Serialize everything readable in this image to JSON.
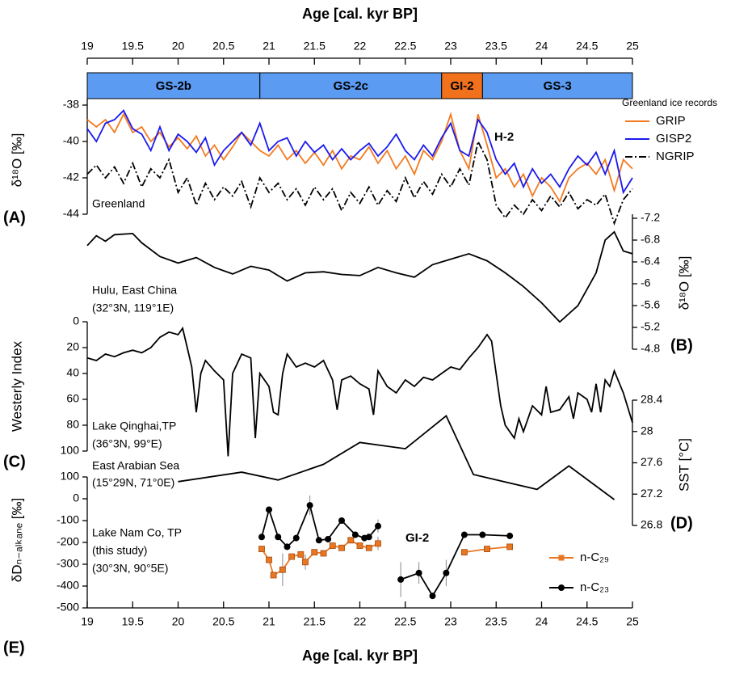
{
  "chart_data": [
    {
      "type": "line",
      "xlabel": "Age [cal. kyr BP]",
      "xlim": [
        19,
        25
      ],
      "xticks": [
        19,
        19.5,
        20,
        20.5,
        21,
        21.5,
        22,
        22.5,
        23,
        23.5,
        24,
        24.5,
        25
      ],
      "stages": [
        {
          "label": "GS-2b",
          "start": 19,
          "end": 20.9,
          "color": "#5b9bf2"
        },
        {
          "label": "GS-2c",
          "start": 20.9,
          "end": 22.9,
          "color": "#5b9bf2"
        },
        {
          "label": "GI-2",
          "start": 22.9,
          "end": 23.35,
          "color": "#f2711c"
        },
        {
          "label": "GS-3",
          "start": 23.35,
          "end": 25,
          "color": "#5b9bf2"
        }
      ],
      "ylabel": "δ¹⁸O [‰]",
      "ylim": [
        -44,
        -38
      ],
      "yticks": [
        -38,
        -40,
        -42,
        -44
      ],
      "panel_label": "(A)",
      "annotations": [
        "Greenland",
        "H-2"
      ],
      "legend_title": "Greenland ice records",
      "x": [
        19,
        19.1,
        19.2,
        19.3,
        19.4,
        19.5,
        19.6,
        19.7,
        19.8,
        19.9,
        20,
        20.1,
        20.2,
        20.3,
        20.4,
        20.5,
        20.6,
        20.7,
        20.8,
        20.9,
        21,
        21.1,
        21.2,
        21.3,
        21.4,
        21.5,
        21.6,
        21.7,
        21.8,
        21.9,
        22,
        22.1,
        22.2,
        22.3,
        22.4,
        22.5,
        22.6,
        22.7,
        22.8,
        22.9,
        23,
        23.1,
        23.2,
        23.3,
        23.4,
        23.5,
        23.6,
        23.7,
        23.8,
        23.9,
        24,
        24.1,
        24.2,
        24.3,
        24.4,
        24.5,
        24.6,
        24.7,
        24.8,
        24.9,
        25
      ],
      "series": [
        {
          "name": "GRIP",
          "color": "#f47a20",
          "values": [
            -38.8,
            -39.2,
            -38.8,
            -39.5,
            -38.5,
            -39.5,
            -39.2,
            -40,
            -39.5,
            -40.3,
            -39.8,
            -40.4,
            -39.7,
            -40.8,
            -40.2,
            -41,
            -40.3,
            -39.5,
            -40,
            -40.5,
            -40.8,
            -40.2,
            -41,
            -40.5,
            -41.2,
            -40.6,
            -41.3,
            -40.5,
            -41.5,
            -40.8,
            -41,
            -40.3,
            -41.2,
            -40.5,
            -41.5,
            -40.8,
            -41.8,
            -40.5,
            -41,
            -40,
            -38.5,
            -40.5,
            -41.5,
            -38.5,
            -40.2,
            -42,
            -41.5,
            -42.5,
            -41.8,
            -43,
            -42,
            -42.5,
            -43.3,
            -42,
            -41.5,
            -41.2,
            -41.8,
            -41,
            -42.7,
            -41,
            -41.5
          ]
        },
        {
          "name": "GISP2",
          "color": "#1a1aef",
          "values": [
            -39.3,
            -40,
            -39,
            -38.8,
            -38.3,
            -39.3,
            -39.6,
            -40.5,
            -39.2,
            -40.5,
            -39.6,
            -40,
            -40.6,
            -39.8,
            -41.3,
            -40.5,
            -40,
            -39.5,
            -40.2,
            -39,
            -40.5,
            -40,
            -39.8,
            -40.8,
            -40,
            -40.6,
            -40.2,
            -41,
            -40.4,
            -41,
            -40.5,
            -40.1,
            -40.8,
            -40.3,
            -39.6,
            -40.5,
            -41,
            -40.2,
            -40.8,
            -39.8,
            -39,
            -40.5,
            -40.8,
            -38.8,
            -39.5,
            -41,
            -41.8,
            -41.2,
            -42.5,
            -41.5,
            -42.3,
            -41.8,
            -42.5,
            -41.5,
            -40.8,
            -41.3,
            -40.6,
            -41.8,
            -40.5,
            -42.8,
            -42
          ]
        },
        {
          "name": "NGRIP",
          "color": "#000000",
          "linestyle": "dashdot",
          "values": [
            -41.8,
            -41.3,
            -42,
            -41.4,
            -42.3,
            -41.2,
            -42.5,
            -41.5,
            -42,
            -41,
            -42.8,
            -42,
            -43.5,
            -42.3,
            -43.2,
            -42.5,
            -43,
            -42.2,
            -43.6,
            -42,
            -42.8,
            -42.3,
            -43.2,
            -42.6,
            -43.5,
            -42.5,
            -43.2,
            -42.6,
            -43.8,
            -42.8,
            -43.4,
            -42.5,
            -43.5,
            -42.7,
            -43.3,
            -42,
            -43.1,
            -42.2,
            -42.9,
            -41.8,
            -42.5,
            -41.5,
            -42.4,
            -40,
            -41,
            -43.5,
            -44.2,
            -43.5,
            -44,
            -43.2,
            -43.8,
            -43,
            -43.6,
            -42.8,
            -43.7,
            -43.2,
            -43.5,
            -42.9,
            -44.5,
            -43.2,
            -42.6
          ]
        }
      ]
    },
    {
      "type": "line",
      "ylabel": "δ¹⁸O [‰]",
      "ylim": [
        -4.8,
        -7.2
      ],
      "yticks": [
        -7.2,
        -6.8,
        -6.4,
        -6,
        -5.6,
        -5.2,
        -4.8
      ],
      "panel_label": "(B)",
      "annotations": [
        "Hulu, East China",
        "(32°3N, 119°1E)"
      ],
      "series": [
        {
          "color": "#000000",
          "x": [
            19,
            19.1,
            19.2,
            19.3,
            19.5,
            19.6,
            19.8,
            20,
            20.2,
            20.4,
            20.6,
            20.8,
            21,
            21.2,
            21.4,
            21.6,
            21.8,
            22,
            22.2,
            22.4,
            22.6,
            22.8,
            23,
            23.2,
            23.4,
            23.6,
            23.8,
            24,
            24.2,
            24.4,
            24.6,
            24.7,
            24.8,
            24.9,
            25
          ],
          "values": [
            -6.7,
            -6.88,
            -6.78,
            -6.9,
            -6.92,
            -6.75,
            -6.5,
            -6.38,
            -6.48,
            -6.3,
            -6.18,
            -6.32,
            -6.25,
            -6.05,
            -6.2,
            -6.22,
            -6.17,
            -6.15,
            -6.3,
            -6.2,
            -6.12,
            -6.35,
            -6.45,
            -6.55,
            -6.42,
            -6.2,
            -5.95,
            -5.65,
            -5.3,
            -5.6,
            -6.2,
            -6.8,
            -6.95,
            -6.6,
            -6.55
          ]
        }
      ]
    },
    {
      "type": "line",
      "ylabel": "Westerly Index",
      "ylim": [
        100,
        0
      ],
      "yticks": [
        0,
        20,
        40,
        60,
        80,
        100
      ],
      "panel_label": "(C)",
      "annotations": [
        "Lake Qinghai,TP",
        "(36°3N, 99°E)"
      ],
      "series": [
        {
          "color": "#000000",
          "x": [
            19,
            19.1,
            19.2,
            19.3,
            19.4,
            19.5,
            19.6,
            19.7,
            19.8,
            19.9,
            20,
            20.05,
            20.1,
            20.15,
            20.2,
            20.25,
            20.3,
            20.4,
            20.5,
            20.55,
            20.6,
            20.7,
            20.8,
            20.85,
            20.9,
            21,
            21.05,
            21.1,
            21.15,
            21.2,
            21.3,
            21.4,
            21.5,
            21.6,
            21.7,
            21.75,
            21.8,
            21.9,
            22,
            22.1,
            22.15,
            22.2,
            22.3,
            22.4,
            22.5,
            22.6,
            22.7,
            22.8,
            22.9,
            23,
            23.1,
            23.2,
            23.3,
            23.4,
            23.45,
            23.55,
            23.6,
            23.7,
            23.75,
            23.8,
            23.9,
            24,
            24.05,
            24.1,
            24.2,
            24.3,
            24.35,
            24.4,
            24.5,
            24.55,
            24.6,
            24.65,
            24.7,
            24.75,
            24.8,
            24.9,
            25
          ],
          "values": [
            28,
            30,
            25,
            27,
            24,
            22,
            24,
            20,
            12,
            8,
            10,
            5,
            20,
            35,
            70,
            40,
            30,
            38,
            45,
            104,
            40,
            25,
            28,
            90,
            40,
            50,
            70,
            72,
            40,
            25,
            35,
            32,
            35,
            30,
            45,
            68,
            45,
            42,
            48,
            52,
            72,
            38,
            50,
            55,
            45,
            50,
            43,
            45,
            40,
            35,
            37,
            28,
            20,
            10,
            15,
            65,
            80,
            90,
            75,
            85,
            65,
            72,
            50,
            70,
            68,
            58,
            75,
            55,
            60,
            70,
            48,
            70,
            45,
            50,
            38,
            55,
            78
          ]
        }
      ]
    },
    {
      "type": "line",
      "ylabel": "SST [°C]",
      "ylim": [
        26.8,
        28.4
      ],
      "yticks": [
        28.4,
        28,
        27.6,
        27.2,
        26.8
      ],
      "panel_label": "(D)",
      "annotations": [
        "East Arabian Sea",
        "(15°29N, 71°0E)"
      ],
      "series": [
        {
          "color": "#000000",
          "x": [
            20,
            20.7,
            21.1,
            21.6,
            22,
            22.5,
            22.95,
            23.25,
            23.95,
            24.3,
            24.8
          ],
          "values": [
            27.36,
            27.48,
            27.38,
            27.58,
            27.86,
            27.78,
            28.2,
            27.45,
            27.26,
            27.56,
            27.13
          ]
        }
      ]
    },
    {
      "type": "line",
      "xlabel": "Age [cal. kyr BP]",
      "xlim": [
        19,
        25
      ],
      "xticks": [
        19,
        19.5,
        20,
        20.5,
        21,
        21.5,
        22,
        22.5,
        23,
        23.5,
        24,
        24.5,
        25
      ],
      "ylabel": "δDₙ₋ₐₗₖₐₙₑ [‰]",
      "ylim": [
        -500,
        100
      ],
      "yticks": [
        100,
        0,
        -100,
        -200,
        -300,
        -400,
        -500
      ],
      "panel_label": "(E)",
      "annotations": [
        "Lake Nam Co, TP",
        "(this study)",
        "(30°3N, 90°5E)",
        "GI-2"
      ],
      "series": [
        {
          "name": "n-C₂₉",
          "color": "#e87722",
          "marker": "square",
          "x": [
            20.92,
            21,
            21.05,
            21.15,
            21.25,
            21.35,
            21.4,
            21.5,
            21.6,
            21.7,
            21.8,
            21.9,
            22,
            22.1,
            22.2,
            22.7,
            23.15,
            23.4,
            23.65
          ],
          "values": [
            -230,
            -280,
            -350,
            -325,
            -265,
            -255,
            -290,
            -245,
            -250,
            -215,
            -225,
            -190,
            -215,
            -225,
            -205,
            null,
            -245,
            -230,
            -220
          ],
          "errors": [
            null,
            null,
            null,
            75,
            null,
            null,
            35,
            null,
            null,
            null,
            null,
            null,
            null,
            null,
            30,
            null,
            null,
            null,
            null
          ]
        },
        {
          "name": "n-C₂₃",
          "color": "#000000",
          "marker": "circle",
          "x": [
            20.92,
            21,
            21.1,
            21.2,
            21.3,
            21.45,
            21.55,
            21.65,
            21.8,
            21.95,
            22.05,
            22.1,
            22.2,
            22.35,
            22.45,
            22.65,
            22.8,
            22.95,
            23.15,
            23.35,
            23.65
          ],
          "values": [
            -175,
            -50,
            -175,
            -220,
            -180,
            -30,
            -190,
            -185,
            -100,
            -165,
            -180,
            -175,
            -125,
            null,
            -370,
            -340,
            -445,
            -340,
            -165,
            -165,
            -170
          ],
          "errors": [
            null,
            null,
            null,
            null,
            null,
            45,
            null,
            null,
            null,
            null,
            null,
            null,
            30,
            null,
            80,
            50,
            null,
            60,
            null,
            null,
            null
          ]
        }
      ]
    }
  ]
}
